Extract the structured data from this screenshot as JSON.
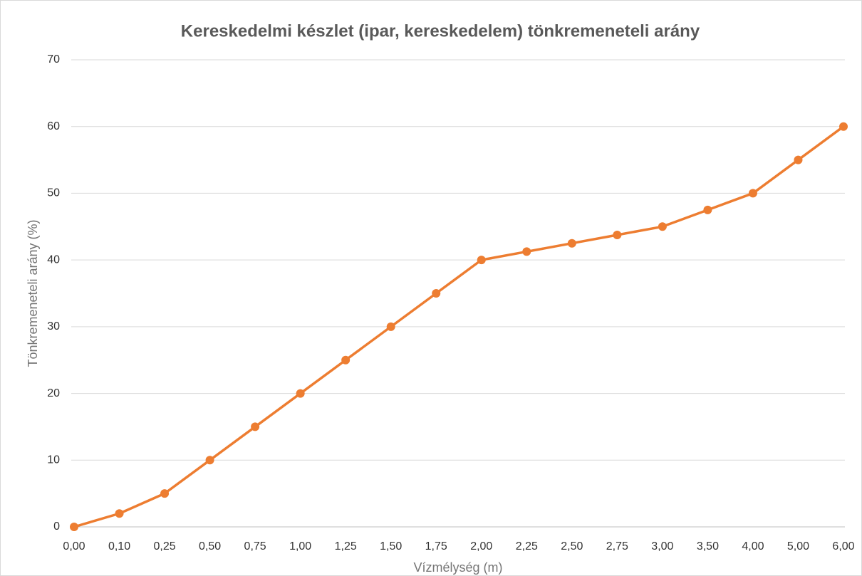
{
  "chart_data": {
    "type": "line",
    "title": "Kereskedelmi készlet (ipar, kereskedelem) tönkremeneteli arány",
    "x_label": "Vízmélység (m)",
    "y_label": "Tönkremeneteli arány  (%)",
    "categories": [
      "0,00",
      "0,10",
      "0,25",
      "0,50",
      "0,75",
      "1,00",
      "1,25",
      "1,50",
      "1,75",
      "2,00",
      "2,25",
      "2,50",
      "2,75",
      "3,00",
      "3,50",
      "4,00",
      "5,00",
      "6,00"
    ],
    "series": [
      {
        "name": "Tönkremeneteli arány",
        "color": "#ed7d31",
        "values": [
          0,
          2,
          5,
          10,
          15,
          20,
          25,
          30,
          35,
          40,
          41.25,
          42.5,
          43.75,
          45,
          47.5,
          50,
          55,
          60
        ]
      }
    ],
    "ylim": [
      0,
      70
    ],
    "yticks": [
      0,
      10,
      20,
      30,
      40,
      50,
      60,
      70
    ],
    "grid": true
  }
}
